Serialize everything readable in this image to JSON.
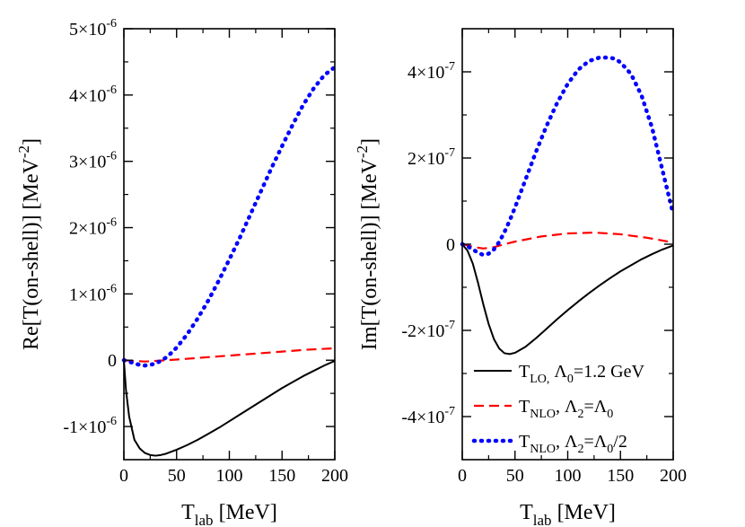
{
  "chart_data": [
    {
      "type": "line",
      "panel": "left",
      "ylabel": "Re[T(on-shell)] [MeV^-2]",
      "ylabel_main": "Re[T(on-shell)] [MeV",
      "ylabel_sup": "-2",
      "ylabel_close": "]",
      "xlabel_main": "T",
      "xlabel_sub": "lab",
      "xlabel_unit": " [MeV]",
      "xlim": [
        0,
        200
      ],
      "ylim": [
        -1.5e-06,
        5e-06
      ],
      "xticks": [
        0,
        50,
        100,
        150,
        200
      ],
      "x_tick_labels": [
        "0",
        "50",
        "100",
        "150",
        "200"
      ],
      "yticks": [
        {
          "value": -1e-06,
          "mant": "-1×10",
          "exp": "-6"
        },
        {
          "value": 0,
          "mant": "0",
          "exp": ""
        },
        {
          "value": 1e-06,
          "mant": "1×10",
          "exp": "-6"
        },
        {
          "value": 2e-06,
          "mant": "2×10",
          "exp": "-6"
        },
        {
          "value": 3e-06,
          "mant": "3×10",
          "exp": "-6"
        },
        {
          "value": 4e-06,
          "mant": "4×10",
          "exp": "-6"
        },
        {
          "value": 5e-06,
          "mant": "5×10",
          "exp": "-6"
        }
      ],
      "series": [
        {
          "style": "solid",
          "color": "#000000",
          "x": [
            0,
            2,
            5,
            10,
            15,
            20,
            25,
            30,
            35,
            40,
            50,
            60,
            70,
            80,
            90,
            100,
            110,
            120,
            130,
            140,
            150,
            160,
            170,
            180,
            190,
            200
          ],
          "y": [
            0,
            -4.5e-07,
            -8.5e-07,
            -1.2e-06,
            -1.33e-06,
            -1.4e-06,
            -1.43e-06,
            -1.44e-06,
            -1.43e-06,
            -1.41e-06,
            -1.35e-06,
            -1.28e-06,
            -1.2e-06,
            -1.11e-06,
            -1.02e-06,
            -9.2e-07,
            -8.2e-07,
            -7.2e-07,
            -6.2e-07,
            -5.2e-07,
            -4.2e-07,
            -3.3e-07,
            -2.4e-07,
            -1.6e-07,
            -8e-08,
            -1e-08
          ]
        },
        {
          "style": "dashed",
          "color": "#ff0000",
          "x": [
            0,
            10,
            20,
            30,
            40,
            50,
            75,
            100,
            125,
            150,
            175,
            200
          ],
          "y": [
            0,
            -1e-08,
            -2e-08,
            -1e-08,
            0,
            1e-08,
            4e-08,
            7e-08,
            1e-07,
            1.3e-07,
            1.6e-07,
            1.8e-07
          ]
        },
        {
          "style": "dotted",
          "color": "#0000ff",
          "x": [
            0,
            5,
            10,
            15,
            20,
            25,
            30,
            35,
            40,
            45,
            50,
            60,
            70,
            80,
            90,
            100,
            110,
            120,
            130,
            140,
            150,
            160,
            170,
            180,
            190,
            200
          ],
          "y": [
            0,
            -2e-08,
            -5e-08,
            -7e-08,
            -8e-08,
            -7e-08,
            -5e-08,
            -1e-08,
            4e-08,
            1.1e-07,
            1.9e-07,
            3.9e-07,
            6.3e-07,
            9e-07,
            1.2e-06,
            1.52e-06,
            1.85e-06,
            2.2e-06,
            2.55e-06,
            2.9e-06,
            3.23e-06,
            3.55e-06,
            3.85e-06,
            4.1e-06,
            4.3e-06,
            4.42e-06
          ]
        }
      ]
    },
    {
      "type": "line",
      "panel": "right",
      "ylabel": "Im[T(on-shell)] [MeV^-2]",
      "ylabel_main": "Im[T(on-shell)] [MeV",
      "ylabel_sup": "-2",
      "ylabel_close": "]",
      "xlabel_main": "T",
      "xlabel_sub": "lab",
      "xlabel_unit": " [MeV]",
      "xlim": [
        0,
        200
      ],
      "ylim": [
        -5e-07,
        5e-07
      ],
      "xticks": [
        0,
        50,
        100,
        150,
        200
      ],
      "x_tick_labels": [
        "0",
        "50",
        "100",
        "150",
        "200"
      ],
      "yticks": [
        {
          "value": -4e-07,
          "mant": "-4×10",
          "exp": "-7"
        },
        {
          "value": -2e-07,
          "mant": "-2×10",
          "exp": "-7"
        },
        {
          "value": 0,
          "mant": "0",
          "exp": ""
        },
        {
          "value": 2e-07,
          "mant": "2×10",
          "exp": "-7"
        },
        {
          "value": 4e-07,
          "mant": "4×10",
          "exp": "-7"
        }
      ],
      "legend": {
        "placement": "bottom-right",
        "entries": [
          {
            "style": "solid",
            "color": "#000000",
            "main": "T",
            "sub": "LO,",
            "mid": " Λ",
            "sub2": "0",
            "tail": "=1.2 GeV"
          },
          {
            "style": "dashed",
            "color": "#ff0000",
            "main": "T",
            "sub": "NLO",
            "mid": ", Λ",
            "sub2": "2",
            "tail": "=Λ",
            "sub3": "0"
          },
          {
            "style": "dotted",
            "color": "#0000ff",
            "main": "T",
            "sub": "NLO",
            "mid": ", Λ",
            "sub2": "2",
            "tail": "=Λ",
            "sub3": "0",
            "tail2": "/2"
          }
        ]
      },
      "series": [
        {
          "style": "solid",
          "color": "#000000",
          "x": [
            0,
            5,
            10,
            15,
            20,
            25,
            30,
            35,
            40,
            45,
            50,
            60,
            70,
            80,
            90,
            100,
            110,
            120,
            130,
            140,
            150,
            160,
            170,
            180,
            190,
            200
          ],
          "y": [
            0,
            -1.5e-08,
            -4.5e-08,
            -9e-08,
            -1.4e-07,
            -1.85e-07,
            -2.2e-07,
            -2.42e-07,
            -2.53e-07,
            -2.55e-07,
            -2.52e-07,
            -2.38e-07,
            -2.18e-07,
            -1.96e-07,
            -1.74e-07,
            -1.53e-07,
            -1.33e-07,
            -1.14e-07,
            -9.6e-08,
            -7.9e-08,
            -6.3e-08,
            -4.9e-08,
            -3.5e-08,
            -2.3e-08,
            -1.2e-08,
            -3e-09
          ]
        },
        {
          "style": "dashed",
          "color": "#ff0000",
          "x": [
            0,
            10,
            20,
            30,
            40,
            50,
            75,
            100,
            125,
            150,
            175,
            200
          ],
          "y": [
            0,
            -6e-09,
            -1e-08,
            -7e-09,
            0,
            6e-09,
            1.8e-08,
            2.5e-08,
            2.7e-08,
            2.3e-08,
            1.5e-08,
            4e-09
          ]
        },
        {
          "style": "dotted",
          "color": "#0000ff",
          "x": [
            0,
            5,
            10,
            15,
            20,
            25,
            30,
            35,
            40,
            45,
            50,
            60,
            70,
            80,
            90,
            100,
            110,
            120,
            130,
            140,
            145,
            150,
            160,
            170,
            180,
            190,
            200
          ],
          "y": [
            0,
            -5e-09,
            -1.2e-08,
            -2e-08,
            -2.5e-08,
            -2.2e-08,
            -1.2e-08,
            5e-09,
            2.8e-08,
            5.5e-08,
            8.5e-08,
            1.5e-07,
            2.15e-07,
            2.75e-07,
            3.28e-07,
            3.72e-07,
            4.05e-07,
            4.25e-07,
            4.33e-07,
            4.33e-07,
            4.3e-07,
            4.22e-07,
            3.95e-07,
            3.45e-07,
            2.7e-07,
            1.7e-07,
            7e-08
          ]
        }
      ]
    }
  ]
}
